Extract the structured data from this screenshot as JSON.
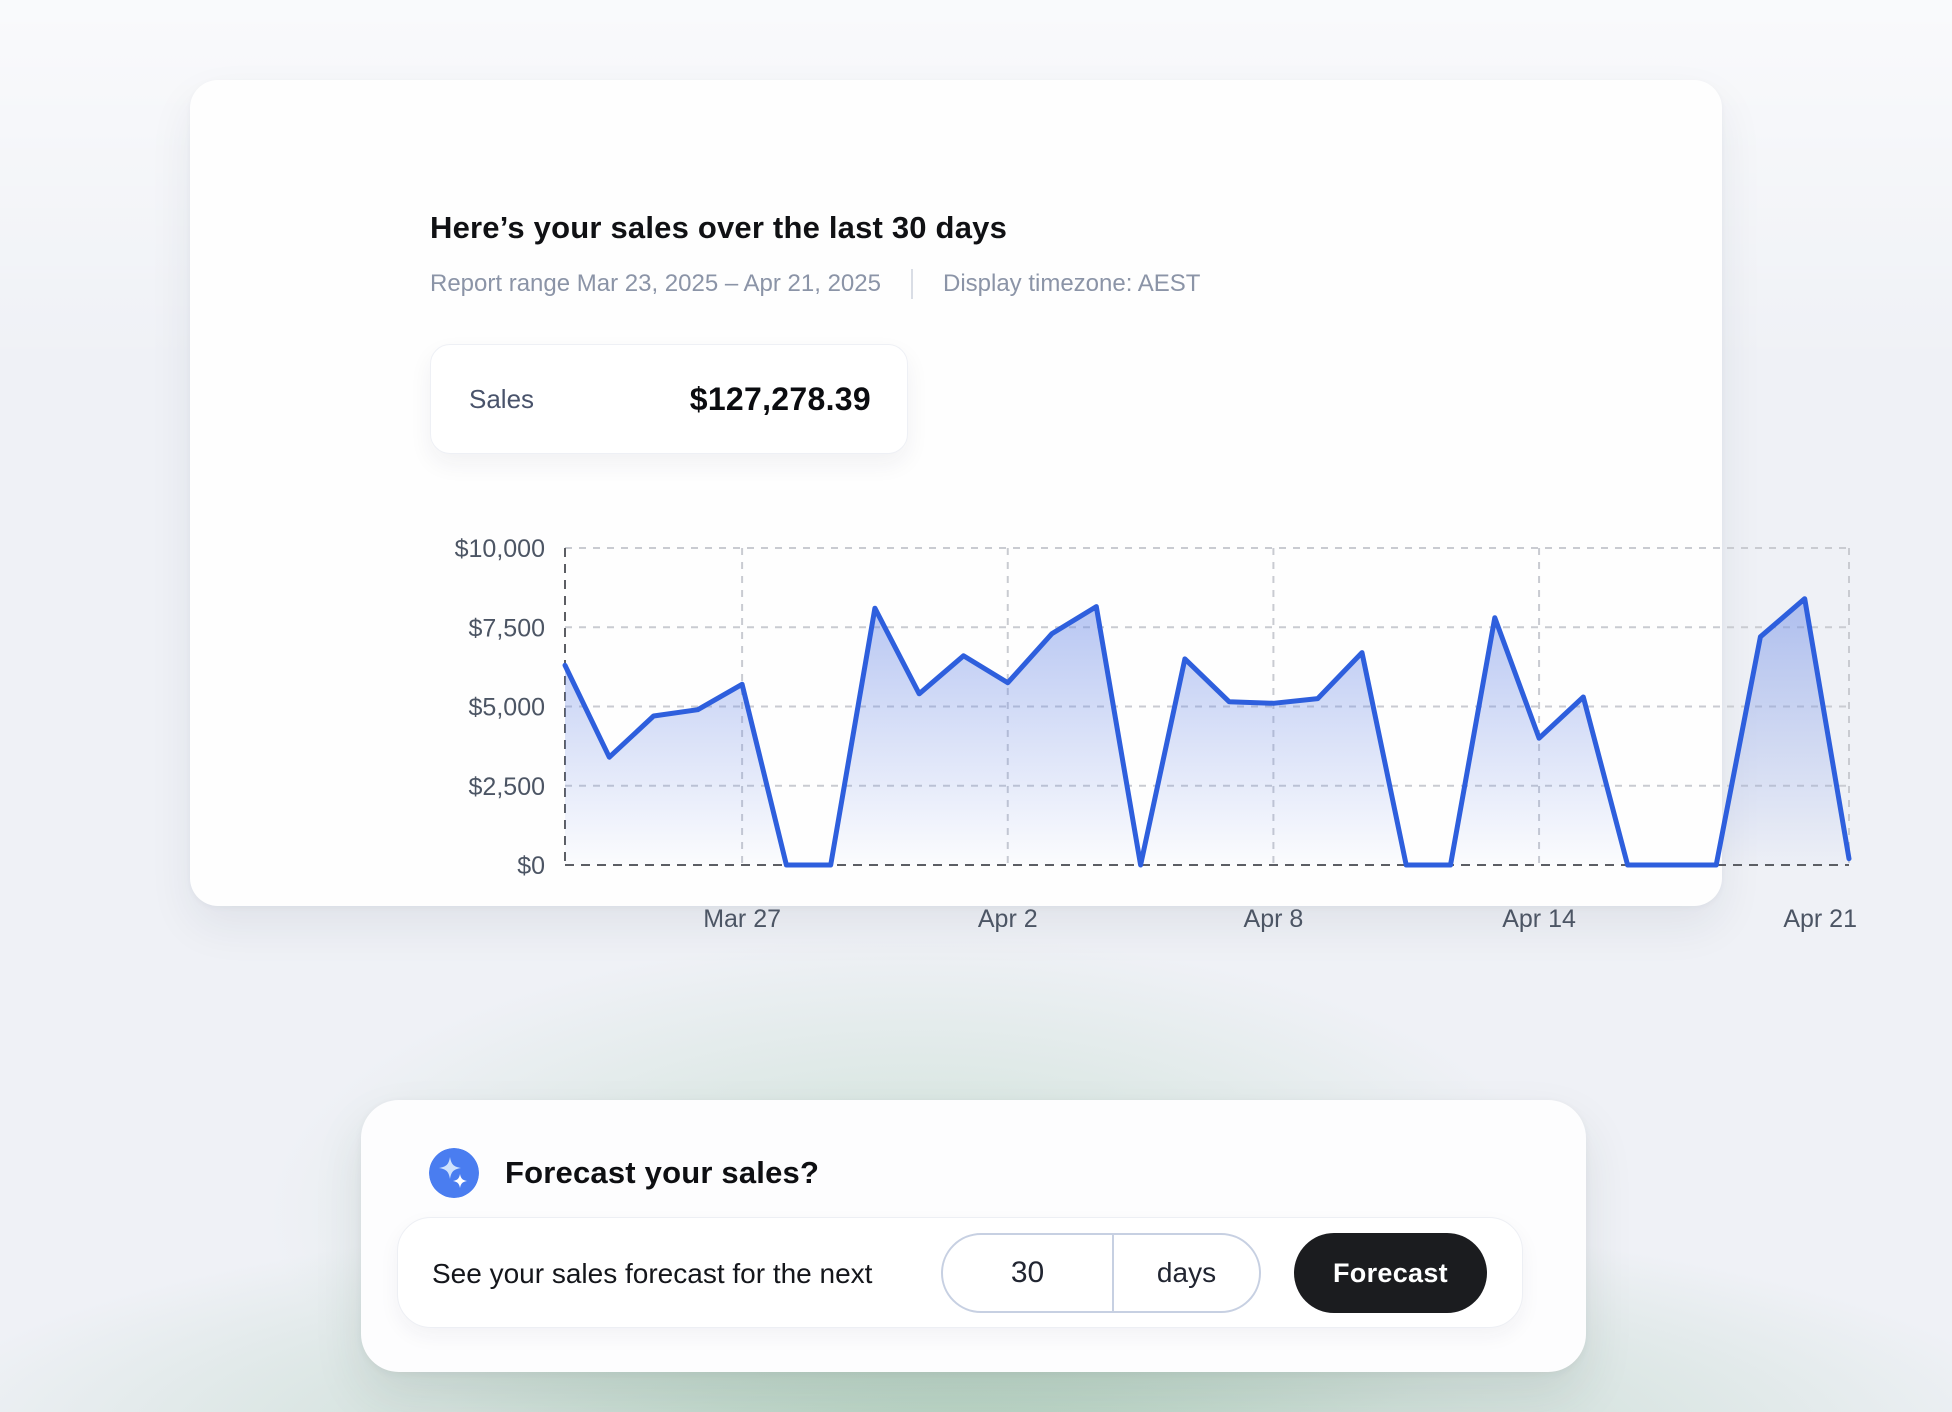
{
  "report_card": {
    "title": "Here’s your sales over the last 30 days",
    "report_range_label": "Report range Mar 23, 2025 – Apr 21, 2025",
    "timezone_label": "Display timezone: AEST",
    "metric": {
      "label": "Sales",
      "value": "$127,278.39"
    }
  },
  "chart_data": {
    "type": "area",
    "title": "Sales over the last 30 days",
    "x": [
      "Mar 23",
      "Mar 24",
      "Mar 25",
      "Mar 26",
      "Mar 27",
      "Mar 28",
      "Mar 29",
      "Mar 30",
      "Mar 31",
      "Apr 1",
      "Apr 2",
      "Apr 3",
      "Apr 4",
      "Apr 5",
      "Apr 6",
      "Apr 7",
      "Apr 8",
      "Apr 9",
      "Apr 10",
      "Apr 11",
      "Apr 12",
      "Apr 13",
      "Apr 14",
      "Apr 15",
      "Apr 16",
      "Apr 17",
      "Apr 18",
      "Apr 19",
      "Apr 20",
      "Apr 21"
    ],
    "values": [
      6300,
      3400,
      4700,
      4900,
      5700,
      0,
      0,
      8100,
      5400,
      6600,
      5750,
      7300,
      8150,
      0,
      6500,
      5150,
      5100,
      5250,
      6700,
      0,
      0,
      7800,
      4000,
      5300,
      0,
      0,
      0,
      7200,
      8400,
      200
    ],
    "ylim": [
      0,
      10000
    ],
    "y_ticks": [
      {
        "value": 10000,
        "label": "$10,000"
      },
      {
        "value": 7500,
        "label": "$7,500"
      },
      {
        "value": 5000,
        "label": "$5,000"
      },
      {
        "value": 2500,
        "label": "$2,500"
      },
      {
        "value": 0,
        "label": "$0"
      }
    ],
    "x_ticks": [
      {
        "index": 4,
        "label": "Mar 27"
      },
      {
        "index": 10,
        "label": "Apr 2"
      },
      {
        "index": 16,
        "label": "Apr 8"
      },
      {
        "index": 22,
        "label": "Apr 14"
      },
      {
        "index": 29,
        "label": "Apr 21"
      }
    ],
    "grid": true,
    "legend": "none",
    "line_color": "#2e5fdd",
    "fill_top_color": "rgba(110,140,230,0.50)",
    "fill_bottom_color": "rgba(110,140,230,0.02)",
    "grid_light_color": "#c9cbd1",
    "grid_dark_color": "#5c5e63",
    "tick_label_color": "#4c5564"
  },
  "forecast_card": {
    "icon": "sparkle-icon",
    "icon_bg_color": "#4a7df0",
    "title": "Forecast your sales?",
    "prompt": "See your sales forecast for the next",
    "input_value": "30",
    "unit_label": "days",
    "button_label": "Forecast",
    "button_bg_color": "#1b1c1f"
  },
  "page": {
    "background_color": "#eff1f6",
    "glow_color": "#9cc8ab"
  }
}
